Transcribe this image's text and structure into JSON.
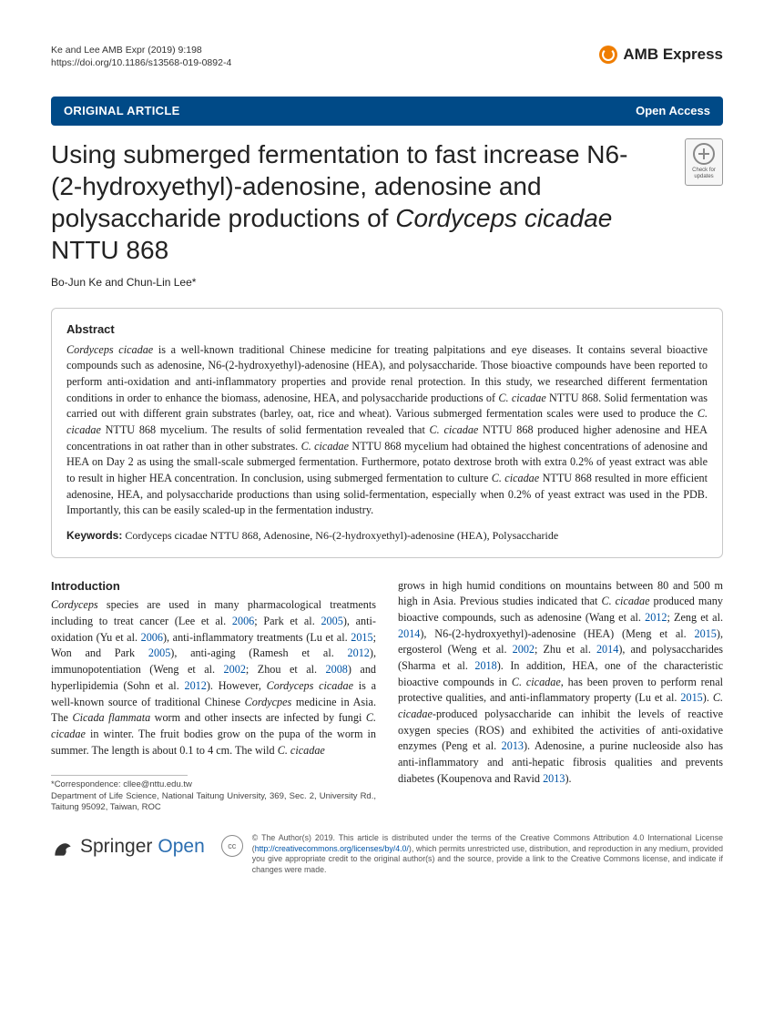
{
  "header": {
    "citation_line1": "Ke and Lee AMB Expr      (2019) 9:198",
    "citation_line2": "https://doi.org/10.1186/s13568-019-0892-4",
    "journal": "AMB Express",
    "brand_color": "#ef7d00"
  },
  "banner": {
    "left": "ORIGINAL ARTICLE",
    "right": "Open Access",
    "bg_color": "#004a87"
  },
  "crossmark": {
    "label": "Check for updates"
  },
  "title": {
    "line_plain_1": "Using submerged fermentation to fast increase N6-(2-hydroxyethyl)-adenosine, adenosine and polysaccharide productions of ",
    "line_italic": "Cordyceps cicadae",
    "line_plain_2": " NTTU 868"
  },
  "authors": "Bo-Jun Ke and Chun-Lin Lee*",
  "abstract": {
    "heading": "Abstract",
    "body_parts": [
      {
        "i": true,
        "t": "Cordyceps cicadae"
      },
      {
        "i": false,
        "t": " is a well-known traditional Chinese medicine for treating palpitations and eye diseases. It contains several bioactive compounds such as adenosine, N6-(2-hydroxyethyl)-adenosine (HEA), and polysaccharide. Those bioactive compounds have been reported to perform anti-oxidation and anti-inflammatory properties and provide renal protection. In this study, we researched different fermentation conditions in order to enhance the biomass, adenosine, HEA, and polysaccharide productions of "
      },
      {
        "i": true,
        "t": "C. cicadae"
      },
      {
        "i": false,
        "t": " NTTU 868. Solid fermentation was carried out with different grain substrates (barley, oat, rice and wheat). Various submerged fermentation scales were used to produce the "
      },
      {
        "i": true,
        "t": "C. cicadae"
      },
      {
        "i": false,
        "t": " NTTU 868 mycelium. The results of solid fermentation revealed that "
      },
      {
        "i": true,
        "t": "C. cicadae"
      },
      {
        "i": false,
        "t": " NTTU 868 produced higher adenosine and HEA concentrations in oat rather than in other substrates. "
      },
      {
        "i": true,
        "t": "C. cicadae"
      },
      {
        "i": false,
        "t": " NTTU 868 mycelium had obtained the highest concentrations of adenosine and HEA on Day 2 as using the small-scale submerged fermentation. Furthermore, potato dextrose broth with extra 0.2% of yeast extract was able to result in higher HEA concentration. In conclusion, using submerged fermentation to culture "
      },
      {
        "i": true,
        "t": "C. cicadae"
      },
      {
        "i": false,
        "t": " NTTU 868 resulted in more efficient adenosine, HEA, and polysaccharide productions than using solid-fermentation, especially when 0.2% of yeast extract was used in the PDB. Importantly, this can be easily scaled-up in the fermentation industry."
      }
    ],
    "keywords_label": "Keywords:",
    "keywords": "Cordyceps cicadae NTTU 868, Adenosine, N6-(2-hydroxyethyl)-adenosine (HEA), Polysaccharide"
  },
  "intro": {
    "heading": "Introduction",
    "col1_parts": [
      {
        "i": true,
        "t": "Cordyceps"
      },
      {
        "i": false,
        "t": " species are used in many pharmacological treatments including to treat cancer (Lee et al. "
      },
      {
        "cite": true,
        "t": "2006"
      },
      {
        "i": false,
        "t": "; Park et al. "
      },
      {
        "cite": true,
        "t": "2005"
      },
      {
        "i": false,
        "t": "), anti-oxidation (Yu et al. "
      },
      {
        "cite": true,
        "t": "2006"
      },
      {
        "i": false,
        "t": "), anti-inflammatory treatments (Lu et al. "
      },
      {
        "cite": true,
        "t": "2015"
      },
      {
        "i": false,
        "t": "; Won and Park "
      },
      {
        "cite": true,
        "t": "2005"
      },
      {
        "i": false,
        "t": "), anti-aging (Ramesh et al. "
      },
      {
        "cite": true,
        "t": "2012"
      },
      {
        "i": false,
        "t": "), immunopotentiation (Weng et al. "
      },
      {
        "cite": true,
        "t": "2002"
      },
      {
        "i": false,
        "t": "; Zhou et al. "
      },
      {
        "cite": true,
        "t": "2008"
      },
      {
        "i": false,
        "t": ") and hyperlipidemia (Sohn et al. "
      },
      {
        "cite": true,
        "t": "2012"
      },
      {
        "i": false,
        "t": "). However, "
      },
      {
        "i": true,
        "t": "Cordyceps cicadae"
      },
      {
        "i": false,
        "t": " is a well-known source of traditional Chinese "
      },
      {
        "i": true,
        "t": "Cordycpes"
      },
      {
        "i": false,
        "t": " medicine in Asia. The "
      },
      {
        "i": true,
        "t": "Cicada flammata"
      },
      {
        "i": false,
        "t": " worm and other insects are infected by fungi "
      },
      {
        "i": true,
        "t": "C. cicadae"
      },
      {
        "i": false,
        "t": " in winter. The fruit bodies grow on the pupa of the worm in summer. The length is about 0.1 to 4 cm. The wild "
      },
      {
        "i": true,
        "t": "C. cicadae"
      }
    ],
    "col2_parts": [
      {
        "i": false,
        "t": "grows in high humid conditions on mountains between 80 and 500 m high in Asia. Previous studies indicated that "
      },
      {
        "i": true,
        "t": "C. cicadae"
      },
      {
        "i": false,
        "t": " produced many bioactive compounds, such as adenosine (Wang et al. "
      },
      {
        "cite": true,
        "t": "2012"
      },
      {
        "i": false,
        "t": "; Zeng et al. "
      },
      {
        "cite": true,
        "t": "2014"
      },
      {
        "i": false,
        "t": "), N6-(2-hydroxyethyl)-adenosine (HEA) (Meng et al. "
      },
      {
        "cite": true,
        "t": "2015"
      },
      {
        "i": false,
        "t": "), ergosterol (Weng et al. "
      },
      {
        "cite": true,
        "t": "2002"
      },
      {
        "i": false,
        "t": "; Zhu et al. "
      },
      {
        "cite": true,
        "t": "2014"
      },
      {
        "i": false,
        "t": "), and polysaccharides (Sharma et al. "
      },
      {
        "cite": true,
        "t": "2018"
      },
      {
        "i": false,
        "t": "). In addition, HEA, one of the characteristic bioactive compounds in "
      },
      {
        "i": true,
        "t": "C. cicadae"
      },
      {
        "i": false,
        "t": ", has been proven to perform renal protective qualities, and anti-inflammatory property (Lu et al. "
      },
      {
        "cite": true,
        "t": "2015"
      },
      {
        "i": false,
        "t": "). "
      },
      {
        "i": true,
        "t": "C. cicadae"
      },
      {
        "i": false,
        "t": "-produced polysaccharide can inhibit the levels of reactive oxygen species (ROS) and exhibited the activities of anti-oxidative enzymes (Peng et al. "
      },
      {
        "cite": true,
        "t": "2013"
      },
      {
        "i": false,
        "t": "). Adenosine, a purine nucleoside also has anti-inflammatory and anti-hepatic fibrosis qualities and prevents diabetes (Koupenova and Ravid "
      },
      {
        "cite": true,
        "t": "2013"
      },
      {
        "i": false,
        "t": ")."
      }
    ]
  },
  "footnote": {
    "line1": "*Correspondence: cllee@nttu.edu.tw",
    "line2": "Department of Life Science, National Taitung University, 369, Sec. 2, University Rd., Taitung 95092, Taiwan, ROC"
  },
  "license": {
    "publisher": "Springer",
    "publisher_open": "Open",
    "cc_label": "cc",
    "text_pre": "© The Author(s) 2019. This article is distributed under the terms of the Creative Commons Attribution 4.0 International License (",
    "link": "http://creativecommons.org/licenses/by/4.0/",
    "text_post": "), which permits unrestricted use, distribution, and reproduction in any medium, provided you give appropriate credit to the original author(s) and the source, provide a link to the Creative Commons license, and indicate if changes were made."
  }
}
